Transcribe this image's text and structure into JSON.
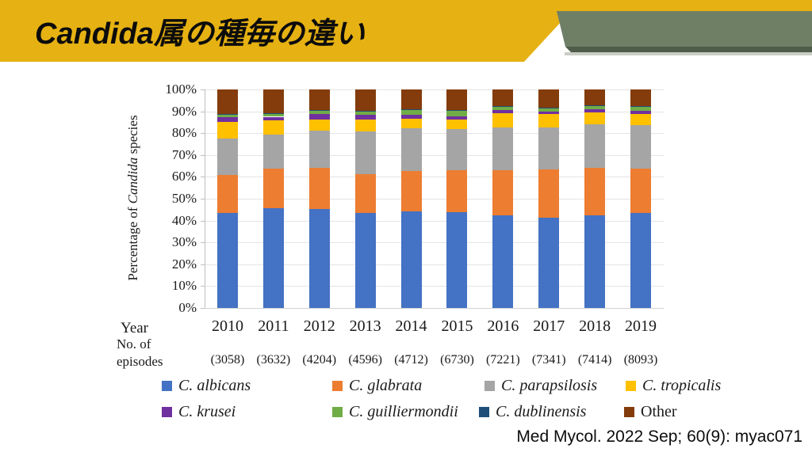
{
  "slide": {
    "title": "Candida属の種毎の違い",
    "citation": "Med Mycol. 2022 Sep; 60(9): myac071"
  },
  "colors": {
    "header_banner": "#E6B112",
    "accent_bar": "#6F7F66",
    "accent_bar_bevel": "#4F5C49",
    "accent_bar_shadow": "#C9CDC5",
    "title_text": "#0C0C0C"
  },
  "chart_data": {
    "type": "bar",
    "stacked": true,
    "title": "",
    "ylabel_parts": [
      {
        "text": "Percentage of ",
        "italic": false
      },
      {
        "text": "Candida",
        "italic": true
      },
      {
        "text": " species",
        "italic": false
      }
    ],
    "ylim": [
      0,
      100
    ],
    "grid": true,
    "yticks": [
      "100%",
      "90%",
      "80%",
      "70%",
      "60%",
      "50%",
      "40%",
      "30%",
      "20%",
      "10%",
      "0%"
    ],
    "year_row_label": "Year",
    "episodes_row_label": "No. of\nepisodes",
    "categories": [
      "2010",
      "2011",
      "2012",
      "2013",
      "2014",
      "2015",
      "2016",
      "2017",
      "2018",
      "2019"
    ],
    "episodes": [
      "(3058)",
      "(3632)",
      "(4204)",
      "(4596)",
      "(4712)",
      "(6730)",
      "(7221)",
      "(7341)",
      "(7414)",
      "(8093)"
    ],
    "legend_position": "bottom",
    "series": [
      {
        "name": "C. albicans",
        "italic": true,
        "color": "#4472C4",
        "values": [
          43.5,
          45.5,
          45.2,
          43.3,
          44.2,
          43.9,
          42.4,
          41.2,
          42.4,
          43.6
        ]
      },
      {
        "name": "C. glabrata",
        "italic": true,
        "color": "#ED7D31",
        "values": [
          17.2,
          18.2,
          18.8,
          18.1,
          18.4,
          19.3,
          20.8,
          22.3,
          21.7,
          20.2
        ]
      },
      {
        "name": "C. parapsilosis",
        "italic": true,
        "color": "#A5A5A5",
        "values": [
          17.0,
          15.8,
          17.2,
          19.5,
          19.5,
          18.6,
          19.3,
          19.1,
          20.1,
          20.0
        ]
      },
      {
        "name": "C. tropicalis",
        "italic": true,
        "color": "#FFC000",
        "values": [
          7.4,
          6.2,
          5.2,
          5.2,
          4.6,
          4.3,
          6.6,
          6.1,
          5.2,
          4.9
        ]
      },
      {
        "name": "C. krusei",
        "italic": true,
        "color": "#7030A0",
        "values": [
          2.1,
          1.8,
          2.3,
          2.3,
          1.6,
          1.7,
          1.4,
          1.2,
          1.7,
          1.5
        ]
      },
      {
        "name": "C. guilliermondii",
        "italic": true,
        "color": "#70AD47",
        "values": [
          1.4,
          1.3,
          1.4,
          1.6,
          2.5,
          2.4,
          1.5,
          1.5,
          1.5,
          2.0
        ]
      },
      {
        "name": "C. dublinensis",
        "italic": true,
        "color": "#1F4E79",
        "values": [
          0.3,
          0.3,
          0.3,
          0.3,
          0.3,
          0.3,
          0.4,
          0.4,
          0.3,
          0.3
        ]
      },
      {
        "name": "Other",
        "italic": false,
        "color": "#843C0C",
        "values": [
          11.1,
          10.9,
          9.6,
          9.7,
          8.9,
          9.5,
          7.6,
          8.2,
          7.1,
          7.5
        ]
      }
    ]
  }
}
